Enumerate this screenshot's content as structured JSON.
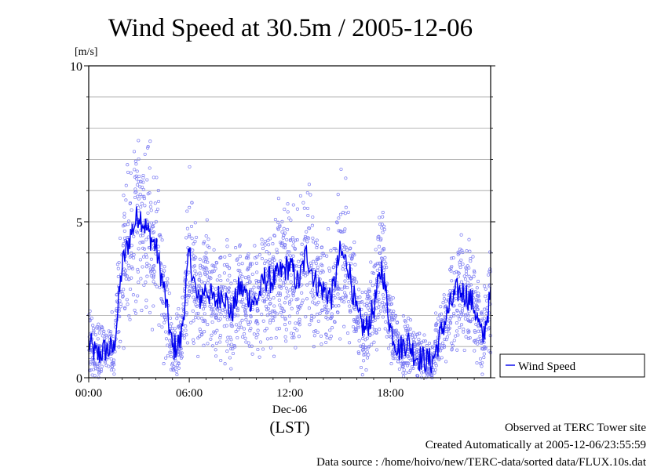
{
  "chart_data": {
    "type": "scatter",
    "title": "Wind Speed at 30.5m / 2005-12-06",
    "ylabel": "[m/s]",
    "xlabel": "(LST)",
    "date_label": "Dec-06",
    "ylim": [
      0,
      10
    ],
    "xlim_hours": [
      0,
      23.98
    ],
    "x_ticks": [
      {
        "hour": 0,
        "label": "00:00"
      },
      {
        "hour": 6,
        "label": "06:00"
      },
      {
        "hour": 12,
        "label": "12:00"
      },
      {
        "hour": 18,
        "label": "18:00"
      }
    ],
    "y_ticks": [
      {
        "value": 0,
        "label": "0"
      },
      {
        "value": 5,
        "label": "5"
      },
      {
        "value": 10,
        "label": "10"
      }
    ],
    "grid_y": [
      1,
      2,
      3,
      4,
      5,
      6,
      7,
      8,
      9
    ],
    "legend": {
      "position": "right",
      "label": "Wind Speed"
    },
    "series": [
      {
        "name": "Wind Speed",
        "color": "#0000ee",
        "x_hours": [
          0.0,
          0.5,
          1.0,
          1.5,
          2.0,
          2.5,
          3.0,
          3.5,
          4.0,
          4.5,
          5.0,
          5.5,
          6.0,
          6.5,
          7.0,
          7.5,
          8.0,
          8.5,
          9.0,
          9.5,
          10.0,
          10.5,
          11.0,
          11.5,
          12.0,
          12.5,
          13.0,
          13.5,
          14.0,
          14.5,
          15.0,
          15.5,
          16.0,
          16.5,
          17.0,
          17.5,
          18.0,
          18.5,
          19.0,
          19.5,
          20.0,
          20.5,
          21.0,
          21.5,
          22.0,
          22.5,
          23.0,
          23.5,
          24.0
        ],
        "mean_values": [
          1.1,
          0.7,
          0.9,
          0.9,
          3.6,
          4.6,
          5.3,
          4.7,
          4.2,
          2.8,
          0.9,
          1.2,
          4.0,
          2.4,
          2.9,
          2.4,
          2.8,
          2.0,
          2.9,
          2.6,
          2.4,
          3.2,
          3.1,
          3.4,
          3.6,
          3.0,
          4.0,
          3.1,
          2.8,
          2.6,
          4.0,
          3.6,
          2.0,
          1.5,
          2.2,
          3.6,
          1.6,
          0.9,
          1.2,
          0.7,
          0.6,
          0.5,
          1.4,
          2.2,
          2.8,
          2.7,
          2.3,
          1.2,
          2.7
        ]
      }
    ]
  },
  "footer": {
    "line1": "Observed at TERC Tower site",
    "line2": "Created Automatically at 2005-12-06/23:55:59",
    "line3": "Data source : /home/hoivo/new/TERC-data/sorted  data/FLUX.10s.dat"
  }
}
